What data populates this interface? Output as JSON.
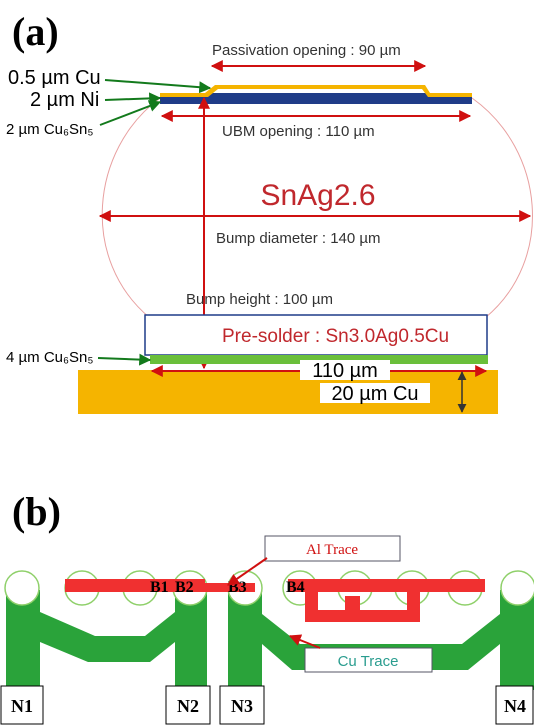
{
  "panel_a": {
    "label": "(a)",
    "passivation_opening": "Passivation opening : 90 µm",
    "cu_layer": "0.5 µm Cu",
    "ni_layer": "2 µm Ni",
    "imc_top": "2 µm Cu₆Sn₅",
    "ubm_opening": "UBM opening : 110 µm",
    "solder": "SnAg2.6",
    "bump_diameter": "Bump diameter : 140 µm",
    "bump_height": "Bump height : 100 µm",
    "pre_solder": "Pre-solder : Sn3.0Ag0.5Cu",
    "imc_bottom": "4 µm Cu₆Sn₅",
    "pad_width": "110 µm",
    "cu_pad": "20 µm Cu"
  },
  "panel_b": {
    "label": "(b)",
    "al_trace": "Al Trace",
    "cu_trace": "Cu Trace",
    "bumps": [
      "B1",
      "B2",
      "B3",
      "B4"
    ],
    "nodes": [
      "N1",
      "N2",
      "N3",
      "N4"
    ]
  }
}
